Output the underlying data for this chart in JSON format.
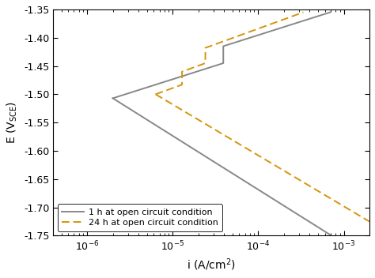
{
  "ylabel": "E (V$_\\mathrm{SCE}$)",
  "xlabel": "i (A/cm$^2$)",
  "ylim": [
    -1.75,
    -1.35
  ],
  "xlim": [
    4e-07,
    0.002
  ],
  "yticks": [
    -1.75,
    -1.7,
    -1.65,
    -1.6,
    -1.55,
    -1.5,
    -1.45,
    -1.4,
    -1.35
  ],
  "gray_color": "#888888",
  "orange_color": "#D4950A",
  "legend_1h": "1 h at open circuit condition",
  "legend_24h": "24 h at open circuit condition",
  "background_color": "#ffffff",
  "Ecorr_1h": -1.507,
  "icorr_1h_log": -5.7,
  "ba_1h": 0.048,
  "bc_1h": 0.095,
  "Ecorr_24h": -1.5,
  "icorr_24h_log": -5.2,
  "ba_24h": 0.055,
  "bc_24h": 0.09
}
